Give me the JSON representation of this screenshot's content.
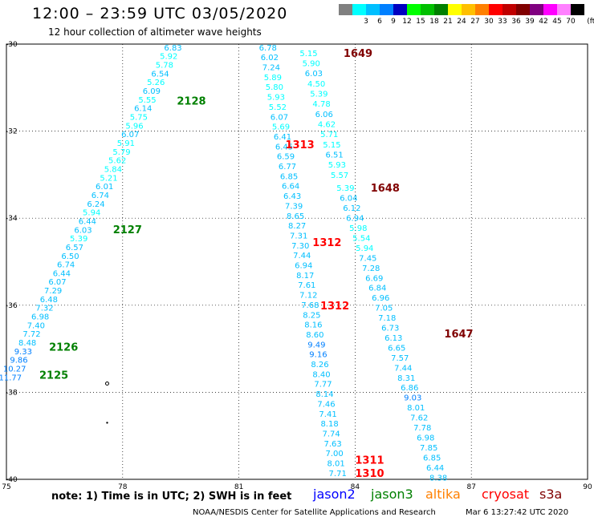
{
  "title": "12:00 – 23:59 UTC 03/05/2020",
  "subtitle": "12 hour collection of altimeter wave heights",
  "colorbar": {
    "unit": "(ft)",
    "bins": [
      {
        "label": "",
        "color": "#808080"
      },
      {
        "label": "3",
        "color": "#00ffff"
      },
      {
        "label": "6",
        "color": "#00bfff"
      },
      {
        "label": "9",
        "color": "#0080ff"
      },
      {
        "label": "12",
        "color": "#0000c0"
      },
      {
        "label": "15",
        "color": "#00ff00"
      },
      {
        "label": "18",
        "color": "#00c000"
      },
      {
        "label": "21",
        "color": "#008000"
      },
      {
        "label": "24",
        "color": "#ffff00"
      },
      {
        "label": "27",
        "color": "#ffc000"
      },
      {
        "label": "30",
        "color": "#ff8000"
      },
      {
        "label": "33",
        "color": "#ff0000"
      },
      {
        "label": "36",
        "color": "#c00000"
      },
      {
        "label": "39",
        "color": "#800000"
      },
      {
        "label": "42",
        "color": "#800080"
      },
      {
        "label": "45",
        "color": "#ff00ff"
      },
      {
        "label": "70",
        "color": "#ff80ff"
      },
      {
        "label": "",
        "color": "#000000"
      }
    ]
  },
  "axes": {
    "x_ticks": [
      "75",
      "78",
      "81",
      "84",
      "87",
      "90"
    ],
    "y_ticks": [
      "-30",
      "-32",
      "-34",
      "-36",
      "-38",
      "-40"
    ],
    "x_range": [
      75,
      90
    ],
    "y_range": [
      -30,
      -40
    ],
    "grid": "dotted"
  },
  "chart_data": {
    "type": "scatter",
    "tracks": [
      {
        "pass_label": "2128",
        "pass_color": "#008000",
        "pass_pos": [
          79.4,
          -31.3
        ],
        "values": [
          "6.83",
          "5.92",
          "5.78",
          "6.54",
          "5.26",
          "6.09",
          "5.55",
          "6.14",
          "5.75",
          "5.96",
          "6.07",
          "5.91",
          "5.79",
          "5.62",
          "5.84",
          "5.21",
          "6.01",
          "6.74",
          "6.24",
          "5.94",
          "6.44",
          "6.03",
          "5.39",
          "6.57",
          "6.50",
          "6.74",
          "6.44",
          "6.07",
          "7.29",
          "6.48",
          "7.32",
          "6.98",
          "7.40",
          "7.72",
          "8.48",
          "9.33",
          "9.86",
          "10.27",
          "11.77"
        ],
        "start": [
          79.3,
          -30.07
        ],
        "end": [
          75.1,
          -37.65
        ]
      },
      {
        "pass_label": "2127",
        "pass_color": "#008000",
        "pass_pos": [
          77.75,
          -34.25
        ]
      },
      {
        "pass_label": "2126",
        "pass_color": "#008000",
        "pass_pos": [
          76.1,
          -36.95
        ]
      },
      {
        "pass_label": "2125",
        "pass_color": "#008000",
        "pass_pos": [
          75.85,
          -37.6
        ]
      },
      {
        "pass_label": "1313",
        "pass_color": "#ff0000",
        "pass_pos": [
          82.2,
          -32.3
        ],
        "values": [
          "6.78",
          "6.02",
          "7.24",
          "5.89",
          "5.80",
          "5.93",
          "5.52",
          "6.07",
          "5.69",
          "6.41",
          "6.45",
          "6.59",
          "6.77",
          "6.85",
          "6.64",
          "6.43",
          "7.39",
          "8.65",
          "8.27",
          "7.31",
          "7.30",
          "7.44",
          "6.94",
          "8.17",
          "7.61",
          "7.12",
          "7.68",
          "8.25",
          "8.16",
          "8.60",
          "9.49",
          "9.16",
          "8.26",
          "8.40",
          "7.77",
          "8.14",
          "7.46",
          "7.41",
          "8.18",
          "7.74",
          "7.63",
          "7.00",
          "8.01",
          "7.71"
        ],
        "start": [
          81.75,
          -30.07
        ],
        "end": [
          83.55,
          -39.85
        ]
      },
      {
        "pass_label": "1312",
        "pass_color": "#ff0000",
        "pass_pos": [
          82.9,
          -34.55
        ]
      },
      {
        "pass_label": "1312",
        "pass_color": "#ff0000",
        "pass_pos": [
          83.1,
          -36.0
        ]
      },
      {
        "pass_label": "1311",
        "pass_color": "#ff0000",
        "pass_pos": [
          84.0,
          -39.55
        ]
      },
      {
        "pass_label": "1310",
        "pass_color": "#ff0000",
        "pass_pos": [
          84.0,
          -39.85
        ]
      },
      {
        "pass_label": "1649",
        "pass_color": "#800000",
        "pass_pos": [
          83.7,
          -30.2
        ],
        "values": [
          "5.15",
          "5.90",
          "6.03",
          "4.50",
          "5.39",
          "4.78",
          "6.06",
          "4.62",
          "5.71",
          "5.15",
          "6.51",
          "5.93",
          "5.57"
        ],
        "start": [
          82.8,
          -30.2
        ],
        "end": [
          83.6,
          -33.0
        ]
      },
      {
        "pass_label": "1648",
        "pass_color": "#800000",
        "pass_pos": [
          84.4,
          -33.3
        ],
        "values": [
          "5.39",
          "6.04",
          "6.12",
          "6.94",
          "5.98",
          "5.54",
          "5.94",
          "7.45",
          "7.28",
          "6.69",
          "6.84",
          "6.96",
          "7.05",
          "7.18",
          "6.73",
          "6.13",
          "6.65",
          "7.57",
          "7.44",
          "8.31",
          "6.86",
          "9.03",
          "8.01",
          "7.62",
          "7.78",
          "6.98",
          "7.85",
          "6.85",
          "6.44",
          "8.38"
        ],
        "start": [
          83.75,
          -33.3
        ],
        "end": [
          86.15,
          -39.95
        ]
      },
      {
        "pass_label": "1647",
        "pass_color": "#800000",
        "pass_pos": [
          86.3,
          -36.65
        ]
      }
    ],
    "markers": [
      {
        "x": 77.6,
        "y": -37.8
      },
      {
        "x": 77.6,
        "y": -38.7
      }
    ]
  },
  "note": "note:  1) Time is in UTC;  2) SWH is in feet",
  "satellites": [
    {
      "name": "jason2",
      "color": "#0000ff"
    },
    {
      "name": "jason3",
      "color": "#008000"
    },
    {
      "name": "altika",
      "color": "#ff8000"
    },
    {
      "name": "cryosat",
      "color": "#ff0000"
    },
    {
      "name": "s3a",
      "color": "#800000"
    }
  ],
  "footer": "NOAA/NESDIS Center for Satellite Applications and Research",
  "timestamp": "Mar  6 13:27:42 UTC 2020"
}
